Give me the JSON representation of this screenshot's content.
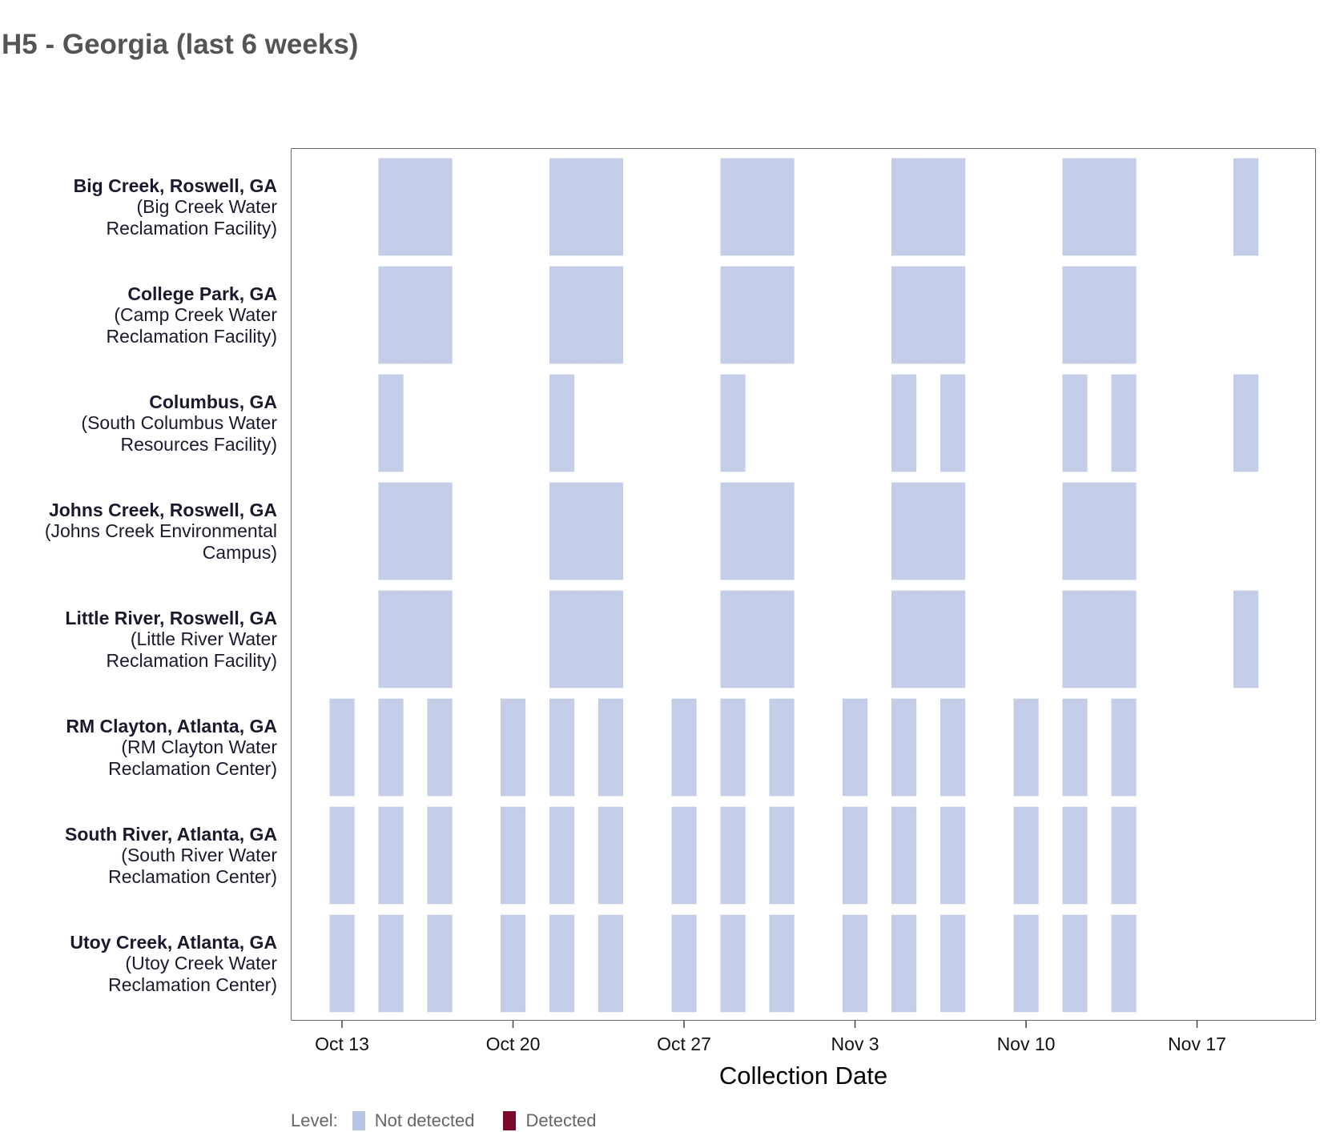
{
  "title": "H5 - Georgia (last 6 weeks)",
  "legend": {
    "label": "Level:",
    "items": [
      {
        "name": "Not detected",
        "color": "#b8c5e8"
      },
      {
        "name": "Detected",
        "color": "#7a0a2a"
      }
    ]
  },
  "chart_data": {
    "type": "heatmap",
    "title": "H5 - Georgia (last 6 weeks)",
    "xlabel": "Collection Date",
    "ylabel": "",
    "x_type": "date",
    "x_ticks": [
      "Oct 13",
      "Oct 20",
      "Oct 27",
      "Nov 3",
      "Nov 10",
      "Nov 17"
    ],
    "x_tick_dates": [
      "2024-10-13",
      "2024-10-20",
      "2024-10-27",
      "2024-11-03",
      "2024-11-10",
      "2024-11-17"
    ],
    "xlim": [
      "2024-10-11",
      "2024-11-22"
    ],
    "cell_color": "#c5cee8",
    "grid": false,
    "legend_position": "bottom-left",
    "sites": [
      {
        "name": "Big Creek, Roswell, GA",
        "facility": "(Big Creek Water Reclamation Facility)",
        "samples": [
          {
            "date": "2024-10-15",
            "level": "Not detected"
          },
          {
            "date": "2024-10-16",
            "level": "Not detected"
          },
          {
            "date": "2024-10-17",
            "level": "Not detected"
          },
          {
            "date": "2024-10-22",
            "level": "Not detected"
          },
          {
            "date": "2024-10-23",
            "level": "Not detected"
          },
          {
            "date": "2024-10-24",
            "level": "Not detected"
          },
          {
            "date": "2024-10-29",
            "level": "Not detected"
          },
          {
            "date": "2024-10-30",
            "level": "Not detected"
          },
          {
            "date": "2024-10-31",
            "level": "Not detected"
          },
          {
            "date": "2024-11-05",
            "level": "Not detected"
          },
          {
            "date": "2024-11-06",
            "level": "Not detected"
          },
          {
            "date": "2024-11-07",
            "level": "Not detected"
          },
          {
            "date": "2024-11-12",
            "level": "Not detected"
          },
          {
            "date": "2024-11-13",
            "level": "Not detected"
          },
          {
            "date": "2024-11-14",
            "level": "Not detected"
          },
          {
            "date": "2024-11-19",
            "level": "Not detected"
          }
        ]
      },
      {
        "name": "College Park, GA",
        "facility": "(Camp Creek Water Reclamation Facility)",
        "samples": [
          {
            "date": "2024-10-15",
            "level": "Not detected"
          },
          {
            "date": "2024-10-16",
            "level": "Not detected"
          },
          {
            "date": "2024-10-17",
            "level": "Not detected"
          },
          {
            "date": "2024-10-22",
            "level": "Not detected"
          },
          {
            "date": "2024-10-23",
            "level": "Not detected"
          },
          {
            "date": "2024-10-24",
            "level": "Not detected"
          },
          {
            "date": "2024-10-29",
            "level": "Not detected"
          },
          {
            "date": "2024-10-30",
            "level": "Not detected"
          },
          {
            "date": "2024-10-31",
            "level": "Not detected"
          },
          {
            "date": "2024-11-05",
            "level": "Not detected"
          },
          {
            "date": "2024-11-06",
            "level": "Not detected"
          },
          {
            "date": "2024-11-07",
            "level": "Not detected"
          },
          {
            "date": "2024-11-12",
            "level": "Not detected"
          },
          {
            "date": "2024-11-13",
            "level": "Not detected"
          },
          {
            "date": "2024-11-14",
            "level": "Not detected"
          }
        ]
      },
      {
        "name": "Columbus, GA",
        "facility": "(South Columbus Water Resources Facility)",
        "samples": [
          {
            "date": "2024-10-15",
            "level": "Not detected"
          },
          {
            "date": "2024-10-22",
            "level": "Not detected"
          },
          {
            "date": "2024-10-29",
            "level": "Not detected"
          },
          {
            "date": "2024-11-05",
            "level": "Not detected"
          },
          {
            "date": "2024-11-07",
            "level": "Not detected"
          },
          {
            "date": "2024-11-12",
            "level": "Not detected"
          },
          {
            "date": "2024-11-14",
            "level": "Not detected"
          },
          {
            "date": "2024-11-19",
            "level": "Not detected"
          }
        ]
      },
      {
        "name": "Johns Creek, Roswell, GA",
        "facility": "(Johns Creek Environmental Campus)",
        "samples": [
          {
            "date": "2024-10-15",
            "level": "Not detected"
          },
          {
            "date": "2024-10-16",
            "level": "Not detected"
          },
          {
            "date": "2024-10-17",
            "level": "Not detected"
          },
          {
            "date": "2024-10-22",
            "level": "Not detected"
          },
          {
            "date": "2024-10-23",
            "level": "Not detected"
          },
          {
            "date": "2024-10-24",
            "level": "Not detected"
          },
          {
            "date": "2024-10-29",
            "level": "Not detected"
          },
          {
            "date": "2024-10-30",
            "level": "Not detected"
          },
          {
            "date": "2024-10-31",
            "level": "Not detected"
          },
          {
            "date": "2024-11-05",
            "level": "Not detected"
          },
          {
            "date": "2024-11-06",
            "level": "Not detected"
          },
          {
            "date": "2024-11-07",
            "level": "Not detected"
          },
          {
            "date": "2024-11-12",
            "level": "Not detected"
          },
          {
            "date": "2024-11-13",
            "level": "Not detected"
          },
          {
            "date": "2024-11-14",
            "level": "Not detected"
          }
        ]
      },
      {
        "name": "Little River, Roswell, GA",
        "facility": "(Little River Water Reclamation Facility)",
        "samples": [
          {
            "date": "2024-10-15",
            "level": "Not detected"
          },
          {
            "date": "2024-10-16",
            "level": "Not detected"
          },
          {
            "date": "2024-10-17",
            "level": "Not detected"
          },
          {
            "date": "2024-10-22",
            "level": "Not detected"
          },
          {
            "date": "2024-10-23",
            "level": "Not detected"
          },
          {
            "date": "2024-10-24",
            "level": "Not detected"
          },
          {
            "date": "2024-10-29",
            "level": "Not detected"
          },
          {
            "date": "2024-10-30",
            "level": "Not detected"
          },
          {
            "date": "2024-10-31",
            "level": "Not detected"
          },
          {
            "date": "2024-11-05",
            "level": "Not detected"
          },
          {
            "date": "2024-11-06",
            "level": "Not detected"
          },
          {
            "date": "2024-11-07",
            "level": "Not detected"
          },
          {
            "date": "2024-11-12",
            "level": "Not detected"
          },
          {
            "date": "2024-11-13",
            "level": "Not detected"
          },
          {
            "date": "2024-11-14",
            "level": "Not detected"
          },
          {
            "date": "2024-11-19",
            "level": "Not detected"
          }
        ]
      },
      {
        "name": "RM Clayton, Atlanta, GA",
        "facility": "(RM Clayton Water Reclamation Center)",
        "samples": [
          {
            "date": "2024-10-13",
            "level": "Not detected"
          },
          {
            "date": "2024-10-15",
            "level": "Not detected"
          },
          {
            "date": "2024-10-17",
            "level": "Not detected"
          },
          {
            "date": "2024-10-20",
            "level": "Not detected"
          },
          {
            "date": "2024-10-22",
            "level": "Not detected"
          },
          {
            "date": "2024-10-24",
            "level": "Not detected"
          },
          {
            "date": "2024-10-27",
            "level": "Not detected"
          },
          {
            "date": "2024-10-29",
            "level": "Not detected"
          },
          {
            "date": "2024-10-31",
            "level": "Not detected"
          },
          {
            "date": "2024-11-03",
            "level": "Not detected"
          },
          {
            "date": "2024-11-05",
            "level": "Not detected"
          },
          {
            "date": "2024-11-07",
            "level": "Not detected"
          },
          {
            "date": "2024-11-10",
            "level": "Not detected"
          },
          {
            "date": "2024-11-12",
            "level": "Not detected"
          },
          {
            "date": "2024-11-14",
            "level": "Not detected"
          }
        ]
      },
      {
        "name": "South River, Atlanta, GA",
        "facility": "(South River Water Reclamation Center)",
        "samples": [
          {
            "date": "2024-10-13",
            "level": "Not detected"
          },
          {
            "date": "2024-10-15",
            "level": "Not detected"
          },
          {
            "date": "2024-10-17",
            "level": "Not detected"
          },
          {
            "date": "2024-10-20",
            "level": "Not detected"
          },
          {
            "date": "2024-10-22",
            "level": "Not detected"
          },
          {
            "date": "2024-10-24",
            "level": "Not detected"
          },
          {
            "date": "2024-10-27",
            "level": "Not detected"
          },
          {
            "date": "2024-10-29",
            "level": "Not detected"
          },
          {
            "date": "2024-10-31",
            "level": "Not detected"
          },
          {
            "date": "2024-11-03",
            "level": "Not detected"
          },
          {
            "date": "2024-11-05",
            "level": "Not detected"
          },
          {
            "date": "2024-11-07",
            "level": "Not detected"
          },
          {
            "date": "2024-11-10",
            "level": "Not detected"
          },
          {
            "date": "2024-11-12",
            "level": "Not detected"
          },
          {
            "date": "2024-11-14",
            "level": "Not detected"
          }
        ]
      },
      {
        "name": "Utoy Creek, Atlanta, GA",
        "facility": "(Utoy Creek Water Reclamation Center)",
        "samples": [
          {
            "date": "2024-10-13",
            "level": "Not detected"
          },
          {
            "date": "2024-10-15",
            "level": "Not detected"
          },
          {
            "date": "2024-10-17",
            "level": "Not detected"
          },
          {
            "date": "2024-10-20",
            "level": "Not detected"
          },
          {
            "date": "2024-10-22",
            "level": "Not detected"
          },
          {
            "date": "2024-10-24",
            "level": "Not detected"
          },
          {
            "date": "2024-10-27",
            "level": "Not detected"
          },
          {
            "date": "2024-10-29",
            "level": "Not detected"
          },
          {
            "date": "2024-10-31",
            "level": "Not detected"
          },
          {
            "date": "2024-11-03",
            "level": "Not detected"
          },
          {
            "date": "2024-11-05",
            "level": "Not detected"
          },
          {
            "date": "2024-11-07",
            "level": "Not detected"
          },
          {
            "date": "2024-11-10",
            "level": "Not detected"
          },
          {
            "date": "2024-11-12",
            "level": "Not detected"
          },
          {
            "date": "2024-11-14",
            "level": "Not detected"
          }
        ]
      }
    ]
  }
}
